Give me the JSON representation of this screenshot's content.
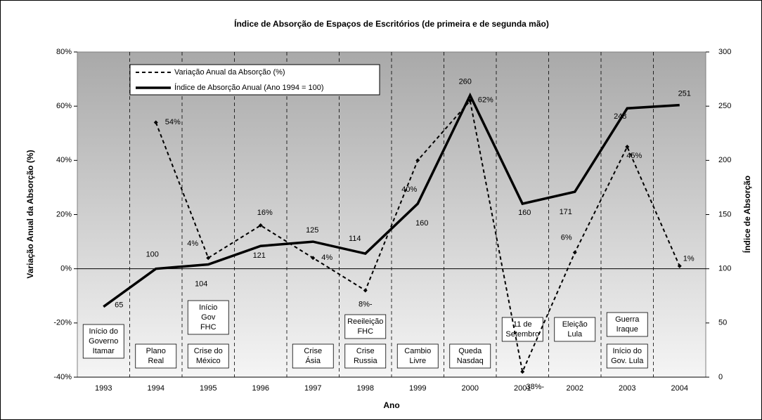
{
  "chart_data": {
    "type": "line",
    "title": "Índice de Absorção de Espaços de Escritórios (de primeira e de segunda mão)",
    "xlabel": "Ano",
    "ylabel": "Variação Anual da Absorção (%)",
    "y2label": "Índice de Absorção",
    "categories": [
      "1993",
      "1994",
      "1995",
      "1996",
      "1997",
      "1998",
      "1999",
      "2000",
      "2001",
      "2002",
      "2003",
      "2004"
    ],
    "series": [
      {
        "name": "Variação Anual da Absorção (%)",
        "color": "#000000",
        "dashed": true,
        "values": [
          null,
          54,
          4,
          16,
          4,
          -8,
          40,
          62,
          -38,
          6,
          45,
          1
        ],
        "value_labels": [
          null,
          "54%",
          "4%",
          "16%",
          "4%",
          "8%-",
          "40%",
          "62%",
          "38%-",
          "6%",
          "45%",
          "1%"
        ]
      },
      {
        "name": "Índice de Absorção Anual (Ano 1994 = 100)",
        "color": "#000000",
        "axis": "y2",
        "values": [
          65,
          100,
          104,
          121,
          125,
          114,
          160,
          260,
          160,
          171,
          248,
          251
        ]
      }
    ],
    "ylim": [
      -40,
      80
    ],
    "yticks": [
      {
        "value": -40,
        "label": "-40%"
      },
      {
        "value": -20,
        "label": "-20%"
      },
      {
        "value": 0,
        "label": "0%"
      },
      {
        "value": 20,
        "label": "20%"
      },
      {
        "value": 40,
        "label": "40%"
      },
      {
        "value": 60,
        "label": "60%"
      },
      {
        "value": 80,
        "label": "80%"
      }
    ],
    "y2lim": [
      0,
      300
    ],
    "y2ticks": [
      0,
      50,
      100,
      150,
      200,
      250,
      300
    ],
    "legend": "top-left",
    "annotations": [
      [
        "Início do",
        "Governo",
        "Itamar"
      ],
      [
        "Plano",
        "Real"
      ],
      [
        "Início",
        "Gov",
        "FHC"
      ],
      [
        "Crise do",
        "México"
      ],
      [
        "Crise",
        "Ásia"
      ],
      [
        "Reeileição",
        "FHC"
      ],
      [
        "Crise",
        "Russia"
      ],
      [
        "Cambio",
        "Livre"
      ],
      [
        "Queda",
        "Nasdaq"
      ],
      [
        "11 de",
        "Setembro"
      ],
      [
        "Eleição",
        "Lula"
      ],
      [
        "Guerra",
        "Iraque"
      ],
      [
        "Início do",
        "Gov. Lula"
      ]
    ]
  }
}
